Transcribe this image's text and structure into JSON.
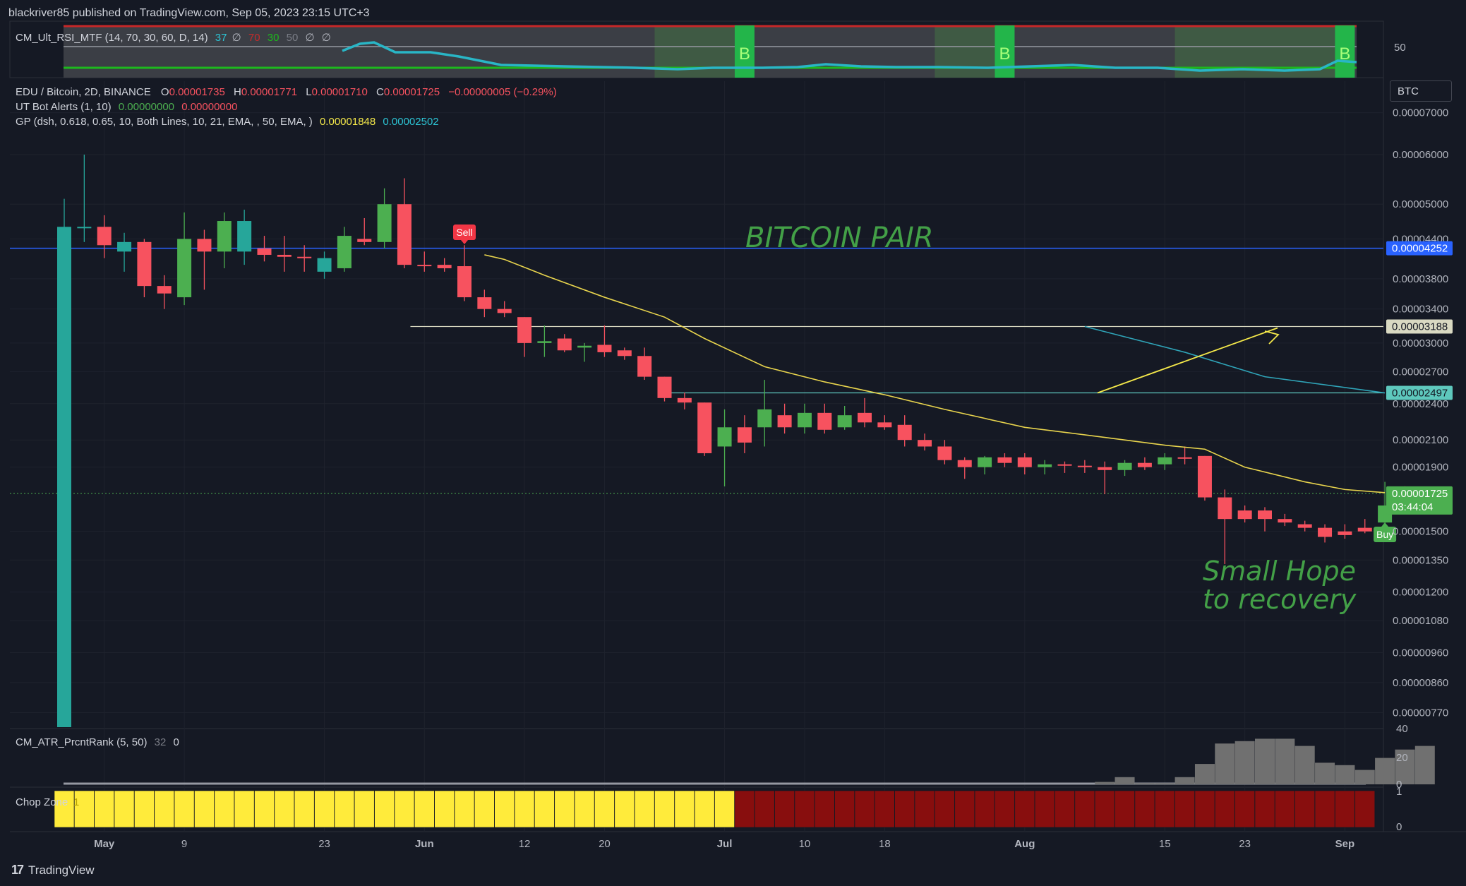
{
  "header": {
    "published": "blackriver85 published on TradingView.com, Sep 05, 2023 23:15 UTC+3"
  },
  "rsi_panel": {
    "name": "CM_Ult_RSI_MTF (14, 70, 30, 60, D, 14)",
    "v1": "37",
    "v1b": "∅",
    "v2": "70",
    "v3": "30",
    "v4": "50",
    "v5": "∅",
    "v6": "∅",
    "axis_label": "50",
    "buy_marker": "B"
  },
  "main_legend": {
    "symbol": "EDU / Bitcoin, 2D, BINANCE",
    "o_label": "O",
    "o": "0.00001735",
    "h_label": "H",
    "h": "0.00001771",
    "l_label": "L",
    "l": "0.00001710",
    "c_label": "C",
    "c": "0.00001725",
    "change": "−0.00000005 (−0.29%)",
    "ut_name": "UT Bot Alerts (1, 10)",
    "ut_v1": "0.00000000",
    "ut_v2": "0.00000000",
    "gp_name": "GP (dsh, 0.618, 0.65, 10, Both Lines, 10, 21, EMA, , 50, EMA, )",
    "gp_v1": "0.00001848",
    "gp_v2": "0.00002502"
  },
  "currency_button": "BTC",
  "annotations": {
    "title_text": "BITCOIN PAIR",
    "hope_line1": "Small Hope",
    "hope_line2": "to recovery",
    "sell_label": "Sell",
    "buy_label": "Buy"
  },
  "price_axis": {
    "ticks": [
      "0.00007000",
      "0.00006000",
      "0.00005000",
      "0.00004400",
      "0.00003800",
      "0.00003400",
      "0.00003000",
      "0.00002700",
      "0.00002400",
      "0.00002100",
      "0.00001900",
      "0.00001500",
      "0.00001350",
      "0.00001200",
      "0.00001080",
      "0.00000960",
      "0.00000860",
      "0.00000770"
    ],
    "tick_values": [
      7e-05,
      6e-05,
      5e-05,
      4.4e-05,
      3.8e-05,
      3.4e-05,
      3e-05,
      2.7e-05,
      2.4e-05,
      2.1e-05,
      1.9e-05,
      1.5e-05,
      1.35e-05,
      1.2e-05,
      1.08e-05,
      9.6e-06,
      8.6e-06,
      7.7e-06
    ],
    "badges": [
      {
        "text": "0.00004252",
        "value": 4.252e-05,
        "bg": "#2962ff",
        "fg": "#ffffff"
      },
      {
        "text": "0.00003188",
        "value": 3.188e-05,
        "bg": "#d9d9c2",
        "fg": "#131722"
      },
      {
        "text": "0.00002497",
        "value": 2.497e-05,
        "bg": "#5ec8bd",
        "fg": "#131722"
      },
      {
        "text": "0.00001725",
        "value": 1.725e-05,
        "bg": "#4caf50",
        "fg": "#ffffff"
      }
    ],
    "countdown": "03:44:04"
  },
  "time_axis": {
    "labels": [
      {
        "text": "May",
        "i": 2,
        "bold": true
      },
      {
        "text": "9",
        "i": 6
      },
      {
        "text": "23",
        "i": 13
      },
      {
        "text": "Jun",
        "i": 18,
        "bold": true
      },
      {
        "text": "12",
        "i": 23
      },
      {
        "text": "20",
        "i": 27
      },
      {
        "text": "Jul",
        "i": 33,
        "bold": true
      },
      {
        "text": "10",
        "i": 37
      },
      {
        "text": "18",
        "i": 41
      },
      {
        "text": "Aug",
        "i": 48,
        "bold": true
      },
      {
        "text": "15",
        "i": 55
      },
      {
        "text": "23",
        "i": 59
      },
      {
        "text": "Sep",
        "i": 64,
        "bold": true
      }
    ]
  },
  "atr_panel": {
    "name": "CM_ATR_PrcntRank (5, 50)",
    "v1": "32",
    "v2": "0",
    "ticks": [
      "40",
      "20",
      "0"
    ],
    "bars": [
      0,
      0,
      0,
      0,
      0,
      0,
      0,
      0,
      0,
      0,
      0,
      0,
      0,
      0,
      0,
      0,
      0,
      0,
      0,
      0,
      0,
      0,
      0,
      0,
      0,
      0,
      0,
      0,
      0,
      0,
      0,
      0,
      0,
      0,
      0,
      0,
      0,
      0,
      0,
      0,
      0,
      0,
      0,
      0,
      0,
      0,
      0,
      0,
      0,
      0,
      0,
      0,
      2,
      6,
      1,
      1,
      6,
      17,
      34,
      36,
      38,
      38,
      32,
      18,
      16,
      12,
      22,
      29,
      32
    ]
  },
  "chop_panel": {
    "name": "Chop Zone",
    "value": "1",
    "ticks": [
      "1",
      "0"
    ],
    "yellow_count": 34,
    "total_count": 66,
    "yellow": "#ffeb3b",
    "red": "#880e0e"
  },
  "footer": {
    "brand": "TradingView"
  },
  "colors": {
    "bull": "#26a69a",
    "bull2": "#4caf50",
    "bear": "#f7525f",
    "ema_yellow": "#e8d44d",
    "teal_line": "#2fa4b8",
    "blue_line": "#2962ff"
  },
  "chart_data": {
    "type": "candlestick",
    "title": "EDU / Bitcoin, 2D, BINANCE",
    "scale": "log",
    "ylim": [
      7.3e-06,
      7.8e-05
    ],
    "interval": "2D",
    "candles": [
      {
        "o": 4.6e-05,
        "h": 5.1e-05,
        "l": 7.3e-06,
        "c": 7.3e-06,
        "color": "#26a69a"
      },
      {
        "o": 4.6e-05,
        "h": 6e-05,
        "l": 4.35e-05,
        "c": 4.6e-05
      },
      {
        "o": 4.6e-05,
        "h": 4.8e-05,
        "l": 4.1e-05,
        "c": 4.3e-05
      },
      {
        "o": 4.2e-05,
        "h": 4.5e-05,
        "l": 3.9e-05,
        "c": 4.35e-05
      },
      {
        "o": 4.35e-05,
        "h": 4.4e-05,
        "l": 3.55e-05,
        "c": 3.7e-05
      },
      {
        "o": 3.7e-05,
        "h": 3.85e-05,
        "l": 3.4e-05,
        "c": 3.6e-05
      },
      {
        "o": 3.55e-05,
        "h": 4.85e-05,
        "l": 3.45e-05,
        "c": 4.4e-05
      },
      {
        "o": 4.4e-05,
        "h": 4.55e-05,
        "l": 3.65e-05,
        "c": 4.2e-05
      },
      {
        "o": 4.2e-05,
        "h": 4.85e-05,
        "l": 3.95e-05,
        "c": 4.7e-05
      },
      {
        "o": 4.2e-05,
        "h": 4.9e-05,
        "l": 4e-05,
        "c": 4.7e-05
      },
      {
        "o": 4.25e-05,
        "h": 4.45e-05,
        "l": 4.05e-05,
        "c": 4.15e-05
      },
      {
        "o": 4.15e-05,
        "h": 4.45e-05,
        "l": 3.9e-05,
        "c": 4.12e-05
      },
      {
        "o": 4.12e-05,
        "h": 4.3e-05,
        "l": 3.9e-05,
        "c": 4.1e-05
      },
      {
        "o": 3.9e-05,
        "h": 4.2e-05,
        "l": 3.8e-05,
        "c": 4.1e-05
      },
      {
        "o": 3.95e-05,
        "h": 4.6e-05,
        "l": 3.9e-05,
        "c": 4.45e-05
      },
      {
        "o": 4.4e-05,
        "h": 4.75e-05,
        "l": 4.3e-05,
        "c": 4.35e-05
      },
      {
        "o": 4.35e-05,
        "h": 5.3e-05,
        "l": 4.25e-05,
        "c": 5e-05
      },
      {
        "o": 5e-05,
        "h": 5.5e-05,
        "l": 3.95e-05,
        "c": 4e-05
      },
      {
        "o": 4e-05,
        "h": 4.2e-05,
        "l": 3.9e-05,
        "c": 3.98e-05
      },
      {
        "o": 4e-05,
        "h": 4.1e-05,
        "l": 3.9e-05,
        "c": 3.95e-05
      },
      {
        "o": 3.98e-05,
        "h": 4.3e-05,
        "l": 3.5e-05,
        "c": 3.55e-05
      },
      {
        "o": 3.55e-05,
        "h": 3.65e-05,
        "l": 3.3e-05,
        "c": 3.4e-05
      },
      {
        "o": 3.4e-05,
        "h": 3.5e-05,
        "l": 3.3e-05,
        "c": 3.35e-05
      },
      {
        "o": 3.3e-05,
        "h": 3.3e-05,
        "l": 2.85e-05,
        "c": 3e-05
      },
      {
        "o": 3e-05,
        "h": 3.2e-05,
        "l": 2.85e-05,
        "c": 3.02e-05
      },
      {
        "o": 3.05e-05,
        "h": 3.1e-05,
        "l": 2.9e-05,
        "c": 2.92e-05
      },
      {
        "o": 2.95e-05,
        "h": 3e-05,
        "l": 2.8e-05,
        "c": 2.97e-05
      },
      {
        "o": 2.98e-05,
        "h": 3.2e-05,
        "l": 2.85e-05,
        "c": 2.9e-05
      },
      {
        "o": 2.92e-05,
        "h": 2.95e-05,
        "l": 2.82e-05,
        "c": 2.86e-05
      },
      {
        "o": 2.86e-05,
        "h": 2.95e-05,
        "l": 2.62e-05,
        "c": 2.65e-05
      },
      {
        "o": 2.65e-05,
        "h": 2.65e-05,
        "l": 2.42e-05,
        "c": 2.45e-05
      },
      {
        "o": 2.45e-05,
        "h": 2.5e-05,
        "l": 2.35e-05,
        "c": 2.41e-05
      },
      {
        "o": 2.41e-05,
        "h": 2.41e-05,
        "l": 1.98e-05,
        "c": 2e-05
      },
      {
        "o": 2.05e-05,
        "h": 2.35e-05,
        "l": 1.77e-05,
        "c": 2.2e-05
      },
      {
        "o": 2.2e-05,
        "h": 2.3e-05,
        "l": 2e-05,
        "c": 2.08e-05
      },
      {
        "o": 2.2e-05,
        "h": 2.62e-05,
        "l": 2.05e-05,
        "c": 2.35e-05
      },
      {
        "o": 2.3e-05,
        "h": 2.4e-05,
        "l": 2.15e-05,
        "c": 2.2e-05
      },
      {
        "o": 2.2e-05,
        "h": 2.4e-05,
        "l": 2.15e-05,
        "c": 2.32e-05
      },
      {
        "o": 2.32e-05,
        "h": 2.4e-05,
        "l": 2.15e-05,
        "c": 2.18e-05
      },
      {
        "o": 2.2e-05,
        "h": 2.38e-05,
        "l": 2.18e-05,
        "c": 2.3e-05
      },
      {
        "o": 2.32e-05,
        "h": 2.45e-05,
        "l": 2.2e-05,
        "c": 2.24e-05
      },
      {
        "o": 2.24e-05,
        "h": 2.3e-05,
        "l": 2.18e-05,
        "c": 2.2e-05
      },
      {
        "o": 2.22e-05,
        "h": 2.3e-05,
        "l": 2.05e-05,
        "c": 2.1e-05
      },
      {
        "o": 2.1e-05,
        "h": 2.15e-05,
        "l": 2.02e-05,
        "c": 2.05e-05
      },
      {
        "o": 2.05e-05,
        "h": 2.1e-05,
        "l": 1.92e-05,
        "c": 1.95e-05
      },
      {
        "o": 1.95e-05,
        "h": 1.97e-05,
        "l": 1.82e-05,
        "c": 1.9e-05
      },
      {
        "o": 1.9e-05,
        "h": 1.98e-05,
        "l": 1.85e-05,
        "c": 1.97e-05
      },
      {
        "o": 1.97e-05,
        "h": 2e-05,
        "l": 1.9e-05,
        "c": 1.93e-05
      },
      {
        "o": 1.97e-05,
        "h": 2e-05,
        "l": 1.85e-05,
        "c": 1.9e-05
      },
      {
        "o": 1.9e-05,
        "h": 1.95e-05,
        "l": 1.85e-05,
        "c": 1.92e-05
      },
      {
        "o": 1.92e-05,
        "h": 1.94e-05,
        "l": 1.86e-05,
        "c": 1.91e-05
      },
      {
        "o": 1.91e-05,
        "h": 1.95e-05,
        "l": 1.86e-05,
        "c": 1.9e-05
      },
      {
        "o": 1.9e-05,
        "h": 1.94e-05,
        "l": 1.72e-05,
        "c": 1.88e-05
      },
      {
        "o": 1.88e-05,
        "h": 1.95e-05,
        "l": 1.84e-05,
        "c": 1.93e-05
      },
      {
        "o": 1.93e-05,
        "h": 1.97e-05,
        "l": 1.88e-05,
        "c": 1.9e-05
      },
      {
        "o": 1.92e-05,
        "h": 2e-05,
        "l": 1.88e-05,
        "c": 1.97e-05
      },
      {
        "o": 1.97e-05,
        "h": 2.05e-05,
        "l": 1.92e-05,
        "c": 1.96e-05
      },
      {
        "o": 1.98e-05,
        "h": 1.98e-05,
        "l": 1.68e-05,
        "c": 1.7e-05
      },
      {
        "o": 1.7e-05,
        "h": 1.75e-05,
        "l": 1.33e-05,
        "c": 1.57e-05
      },
      {
        "o": 1.62e-05,
        "h": 1.65e-05,
        "l": 1.55e-05,
        "c": 1.57e-05
      },
      {
        "o": 1.62e-05,
        "h": 1.64e-05,
        "l": 1.5e-05,
        "c": 1.57e-05
      },
      {
        "o": 1.57e-05,
        "h": 1.6e-05,
        "l": 1.53e-05,
        "c": 1.55e-05
      },
      {
        "o": 1.54e-05,
        "h": 1.56e-05,
        "l": 1.5e-05,
        "c": 1.52e-05
      },
      {
        "o": 1.52e-05,
        "h": 1.54e-05,
        "l": 1.44e-05,
        "c": 1.47e-05
      },
      {
        "o": 1.5e-05,
        "h": 1.54e-05,
        "l": 1.46e-05,
        "c": 1.48e-05
      },
      {
        "o": 1.52e-05,
        "h": 1.57e-05,
        "l": 1.49e-05,
        "c": 1.5e-05
      },
      {
        "o": 1.55e-05,
        "h": 1.8e-05,
        "l": 1.52e-05,
        "c": 1.65e-05
      },
      {
        "o": 1.735e-05,
        "h": 1.771e-05,
        "l": 1.71e-05,
        "c": 1.725e-05
      }
    ],
    "ema_line": [
      [
        21,
        4.15e-05
      ],
      [
        22,
        4.08e-05
      ],
      [
        24,
        3.85e-05
      ],
      [
        27,
        3.55e-05
      ],
      [
        30,
        3.3e-05
      ],
      [
        32,
        3.05e-05
      ],
      [
        35,
        2.75e-05
      ],
      [
        38,
        2.6e-05
      ],
      [
        41,
        2.48e-05
      ],
      [
        44,
        2.35e-05
      ],
      [
        48,
        2.2e-05
      ],
      [
        52,
        2.12e-05
      ],
      [
        55,
        2.06e-05
      ],
      [
        57,
        2.03e-05
      ],
      [
        59,
        1.9e-05
      ],
      [
        62,
        1.8e-05
      ],
      [
        64,
        1.75e-05
      ],
      [
        66,
        1.73e-05
      ]
    ],
    "teal_line": [
      [
        51,
        3.188e-05
      ],
      [
        56,
        2.9e-05
      ],
      [
        60,
        2.65e-05
      ],
      [
        66,
        2.497e-05
      ]
    ],
    "resistance_levels": [
      4.252e-05,
      3.188e-05,
      2.497e-05
    ],
    "rsi_buy_zones": [
      [
        30,
        34
      ],
      [
        44,
        47
      ],
      [
        56,
        64
      ]
    ],
    "rsi_buy_markers": [
      34,
      47,
      64
    ],
    "sell_signal_index": 20,
    "buy_signal_index": 66
  }
}
